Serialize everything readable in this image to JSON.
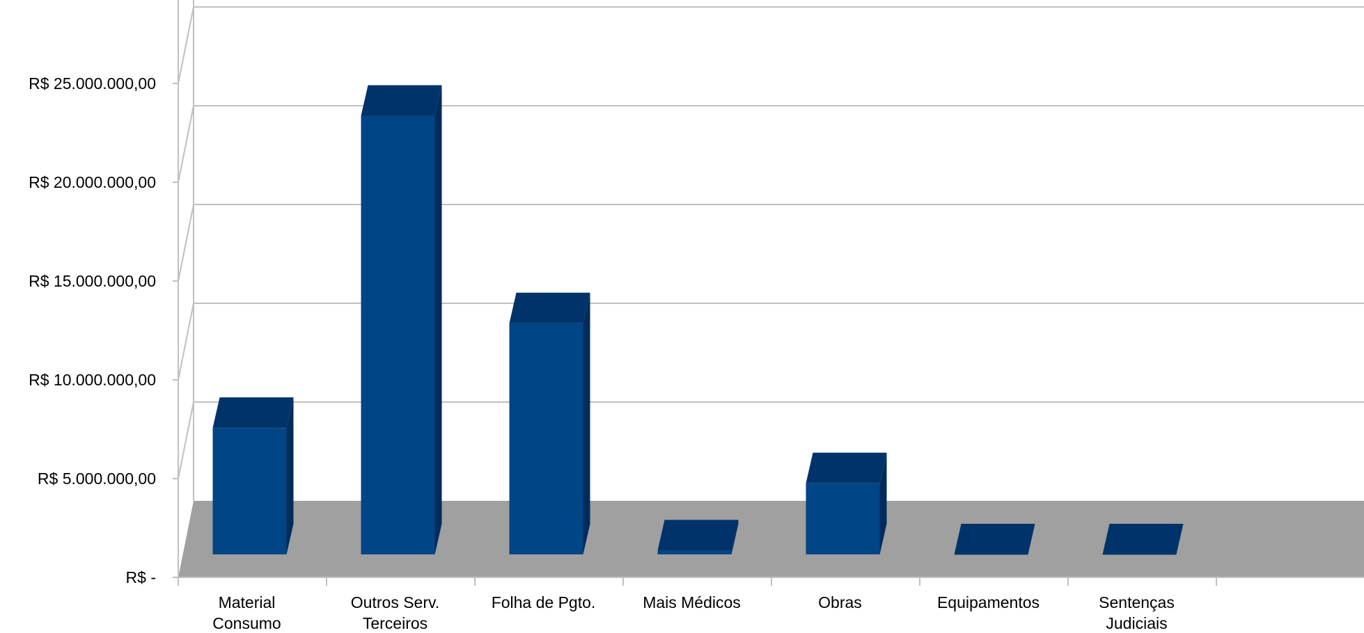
{
  "chart_data": {
    "type": "bar",
    "title": "",
    "xlabel": "",
    "ylabel": "",
    "categories": [
      [
        "Material",
        "Consumo"
      ],
      [
        "Outros Serv.",
        "Terceiros"
      ],
      [
        "Folha de Pgto."
      ],
      [
        "Mais Médicos"
      ],
      [
        "Obras"
      ],
      [
        "Equipamentos"
      ],
      [
        "Sentenças",
        "Judiciais"
      ]
    ],
    "values": [
      6400000,
      22200000,
      11700000,
      200000,
      3600000,
      0,
      0
    ],
    "ylim": [
      0,
      30000000
    ],
    "yticks": [
      {
        "value": 0,
        "label": "R$ -"
      },
      {
        "value": 5000000,
        "label": "R$ 5.000.000,00"
      },
      {
        "value": 10000000,
        "label": "R$ 10.000.000,00"
      },
      {
        "value": 15000000,
        "label": "R$ 15.000.000,00"
      },
      {
        "value": 20000000,
        "label": "R$ 20.000.000,00"
      },
      {
        "value": 25000000,
        "label": "R$ 25.000.000,00"
      }
    ],
    "grid": true,
    "legend": "none",
    "style": "3d",
    "colors": {
      "bar_front": "#004586",
      "bar_top": "#00336a",
      "bar_side": "#002c5c",
      "floor": "#a0a0a0",
      "grid": "#c0c0c0"
    }
  }
}
